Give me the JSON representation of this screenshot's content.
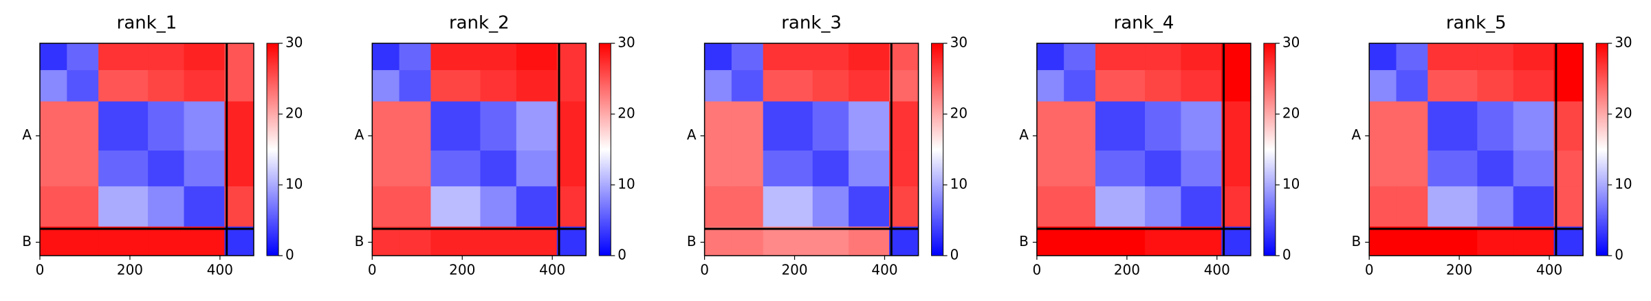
{
  "chart_data": [
    {
      "type": "heatmap",
      "title": "rank_1",
      "colormap": "bwr",
      "xlim": [
        0,
        475
      ],
      "ylim": [
        475,
        0
      ],
      "xticks": [
        0,
        200,
        400
      ],
      "yticks": [
        {
          "value": 207,
          "label": "A"
        },
        {
          "value": 445,
          "label": "B"
        }
      ],
      "bins": [
        0,
        60,
        130,
        240,
        320,
        410,
        475
      ],
      "boundaries": [
        415
      ],
      "z": [
        [
          3,
          6,
          27,
          27,
          28,
          25
        ],
        [
          8,
          5,
          25,
          26,
          27,
          25
        ],
        [
          24,
          24,
          4,
          6,
          8,
          28
        ],
        [
          24,
          24,
          6,
          4,
          7,
          28
        ],
        [
          25,
          25,
          10,
          8,
          4,
          26
        ],
        [
          29,
          29,
          29,
          29,
          29,
          3
        ]
      ],
      "clim": [
        0,
        30
      ],
      "cticks": [
        0,
        10,
        20,
        30
      ]
    },
    {
      "type": "heatmap",
      "title": "rank_2",
      "colormap": "bwr",
      "xlim": [
        0,
        475
      ],
      "ylim": [
        475,
        0
      ],
      "xticks": [
        0,
        200,
        400
      ],
      "yticks": [
        {
          "value": 207,
          "label": "A"
        },
        {
          "value": 445,
          "label": "B"
        }
      ],
      "bins": [
        0,
        60,
        130,
        240,
        320,
        410,
        475
      ],
      "boundaries": [
        415
      ],
      "z": [
        [
          3,
          6,
          28,
          28,
          29,
          27
        ],
        [
          8,
          5,
          26,
          27,
          28,
          27
        ],
        [
          24,
          24,
          4,
          6,
          9,
          28
        ],
        [
          24,
          24,
          6,
          4,
          8,
          28
        ],
        [
          25,
          25,
          11,
          8,
          4,
          27
        ],
        [
          27,
          27,
          28,
          28,
          28,
          3
        ]
      ],
      "clim": [
        0,
        30
      ],
      "cticks": [
        0,
        10,
        20,
        30
      ]
    },
    {
      "type": "heatmap",
      "title": "rank_3",
      "colormap": "bwr",
      "xlim": [
        0,
        475
      ],
      "ylim": [
        475,
        0
      ],
      "xticks": [
        0,
        200,
        400
      ],
      "yticks": [
        {
          "value": 207,
          "label": "A"
        },
        {
          "value": 445,
          "label": "B"
        }
      ],
      "bins": [
        0,
        60,
        130,
        240,
        320,
        410,
        475
      ],
      "boundaries": [
        415
      ],
      "z": [
        [
          3,
          6,
          27,
          27,
          28,
          25
        ],
        [
          8,
          5,
          25,
          26,
          27,
          24
        ],
        [
          23,
          23,
          4,
          6,
          9,
          27
        ],
        [
          23,
          23,
          6,
          4,
          8,
          27
        ],
        [
          24,
          24,
          11,
          8,
          4,
          26
        ],
        [
          23,
          23,
          22,
          22,
          23,
          3
        ]
      ],
      "clim": [
        0,
        30
      ],
      "cticks": [
        0,
        10,
        20,
        30
      ]
    },
    {
      "type": "heatmap",
      "title": "rank_4",
      "colormap": "bwr",
      "xlim": [
        0,
        475
      ],
      "ylim": [
        475,
        0
      ],
      "xticks": [
        0,
        200,
        400
      ],
      "yticks": [
        {
          "value": 207,
          "label": "A"
        },
        {
          "value": 445,
          "label": "B"
        }
      ],
      "bins": [
        0,
        60,
        130,
        240,
        320,
        410,
        475
      ],
      "boundaries": [
        415
      ],
      "z": [
        [
          3,
          6,
          27,
          27,
          28,
          30
        ],
        [
          8,
          5,
          25,
          26,
          27,
          30
        ],
        [
          24,
          24,
          4,
          6,
          8,
          28
        ],
        [
          24,
          24,
          6,
          4,
          7,
          28
        ],
        [
          25,
          25,
          10,
          8,
          4,
          27
        ],
        [
          30,
          30,
          30,
          29,
          29,
          3
        ]
      ],
      "clim": [
        0,
        30
      ],
      "cticks": [
        0,
        10,
        20,
        30
      ]
    },
    {
      "type": "heatmap",
      "title": "rank_5",
      "colormap": "bwr",
      "xlim": [
        0,
        475
      ],
      "ylim": [
        475,
        0
      ],
      "xticks": [
        0,
        200,
        400
      ],
      "yticks": [
        {
          "value": 207,
          "label": "A"
        },
        {
          "value": 445,
          "label": "B"
        }
      ],
      "bins": [
        0,
        60,
        130,
        240,
        320,
        410,
        475
      ],
      "boundaries": [
        415
      ],
      "z": [
        [
          3,
          6,
          27,
          27,
          28,
          30
        ],
        [
          8,
          5,
          25,
          26,
          27,
          30
        ],
        [
          24,
          24,
          4,
          6,
          8,
          26
        ],
        [
          24,
          24,
          6,
          4,
          7,
          25
        ],
        [
          25,
          25,
          10,
          8,
          4,
          25
        ],
        [
          30,
          30,
          30,
          29,
          29,
          3
        ]
      ],
      "clim": [
        0,
        30
      ],
      "cticks": [
        0,
        10,
        20,
        30
      ]
    }
  ]
}
